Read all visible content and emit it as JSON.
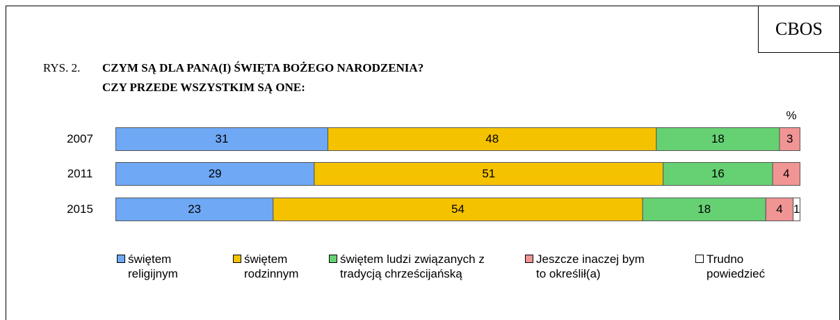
{
  "badge": "CBOS",
  "chart_data": {
    "type": "stacked-barh",
    "figure_label": "RYS. 2.",
    "title_lines": [
      "CZYM SĄ DLA PANA(I) ŚWIĘTA BOŻEGO NARODZENIA?",
      "CZY PRZEDE WSZYSTKIM SĄ ONE:"
    ],
    "unit": "%",
    "categories": [
      "2007",
      "2011",
      "2015"
    ],
    "xlim": [
      0,
      100
    ],
    "series": [
      {
        "name": "świętem religijnym",
        "color": "#6fa8f4",
        "values": [
          31,
          29,
          23
        ]
      },
      {
        "name": "świętem rodzinnym",
        "color": "#f5c200",
        "values": [
          48,
          51,
          54
        ]
      },
      {
        "name": "świętem ludzi związanych z tradycją chrześcijańską",
        "color": "#66d173",
        "values": [
          18,
          16,
          18
        ]
      },
      {
        "name": "Jeszcze inaczej bym to określił(a)",
        "color": "#f09494",
        "values": [
          3,
          4,
          4
        ]
      },
      {
        "name": "Trudno powiedzieć",
        "color": "#ffffff",
        "values": [
          null,
          null,
          1
        ]
      }
    ]
  }
}
